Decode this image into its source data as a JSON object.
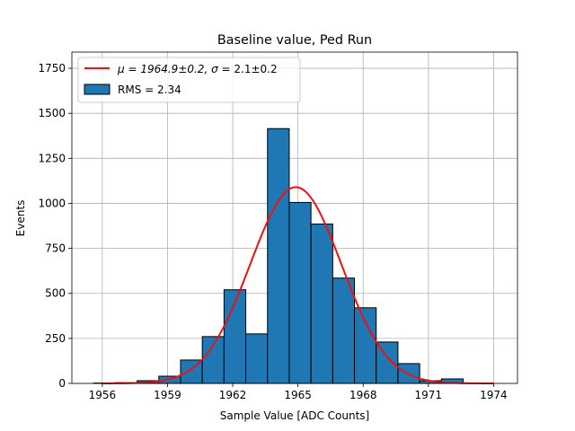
{
  "chart_data": {
    "type": "bar",
    "title": "Baseline value, Ped Run",
    "xlabel": "Sample Value [ADC Counts]",
    "ylabel": "Events",
    "xlim": [
      1954.6,
      1975.1
    ],
    "ylim": [
      0,
      1840
    ],
    "grid": true,
    "legend_position": "top-left",
    "x_ticks": [
      1956,
      1959,
      1962,
      1965,
      1968,
      1971,
      1974
    ],
    "y_ticks": [
      0,
      250,
      500,
      750,
      1000,
      1250,
      1500,
      1750
    ],
    "bin_edges": [
      1955.6,
      1956.6,
      1957.6,
      1958.6,
      1959.6,
      1960.6,
      1961.6,
      1962.6,
      1963.6,
      1964.6,
      1965.6,
      1966.6,
      1967.6,
      1968.6,
      1969.6,
      1970.6,
      1971.6,
      1972.6,
      1973.6
    ],
    "series": [
      {
        "name": "RMS = 2.34",
        "kind": "histogram",
        "color": "#1f77b4",
        "edgecolor": "#000000",
        "values": [
          2,
          4,
          15,
          40,
          130,
          260,
          520,
          275,
          1415,
          1005,
          885,
          585,
          420,
          230,
          110,
          15,
          25,
          2
        ]
      },
      {
        "name": "μ = 1964.9±0.2, σ = 2.1±0.2",
        "kind": "gaussian-fit",
        "color": "#ee1111",
        "amplitude": 1090,
        "mean": 1964.9,
        "sigma": 2.1,
        "x_range": [
          1956,
          1974
        ]
      }
    ]
  },
  "legend": {
    "fit_label_prefix": "μ = 1964.9±0.2, ",
    "fit_label_sigma": "σ",
    "fit_label_suffix": " = 2.1±0.2",
    "hist_label": "RMS = 2.34"
  }
}
